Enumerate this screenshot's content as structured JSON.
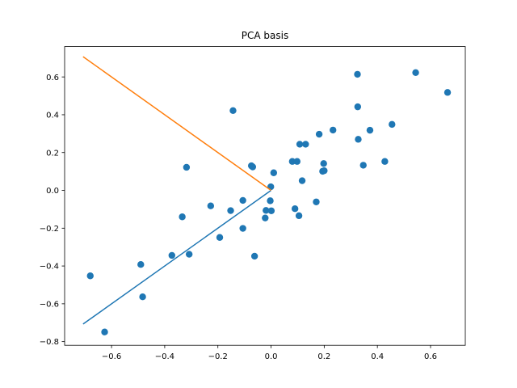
{
  "chart_data": {
    "type": "scatter",
    "title": "PCA basis",
    "xlabel": "",
    "ylabel": "",
    "xlim": [
      -0.7765,
      0.7307
    ],
    "ylim": [
      -0.8195,
      0.7606
    ],
    "xticks": [
      -0.6,
      -0.4,
      -0.2,
      0.0,
      0.2,
      0.4,
      0.6
    ],
    "xtick_labels": [
      "−0.6",
      "−0.4",
      "−0.2",
      "0.0",
      "0.2",
      "0.4",
      "0.6"
    ],
    "yticks": [
      -0.8,
      -0.6,
      -0.4,
      -0.2,
      0.0,
      0.2,
      0.4,
      0.6
    ],
    "ytick_labels": [
      "−0.8",
      "−0.6",
      "−0.4",
      "−0.2",
      "0.0",
      "0.2",
      "0.4",
      "0.6"
    ],
    "grid": false,
    "series": [
      {
        "kind": "scatter",
        "color": "#1f77b4",
        "points": [
          [
            -0.68,
            -0.452
          ],
          [
            -0.626,
            -0.749
          ],
          [
            -0.483,
            -0.563
          ],
          [
            -0.49,
            -0.392
          ],
          [
            -0.373,
            -0.344
          ],
          [
            -0.334,
            -0.14
          ],
          [
            -0.308,
            -0.338
          ],
          [
            -0.318,
            0.122
          ],
          [
            -0.227,
            -0.082
          ],
          [
            -0.193,
            -0.249
          ],
          [
            -0.152,
            -0.107
          ],
          [
            -0.143,
            0.422
          ],
          [
            -0.106,
            -0.201
          ],
          [
            -0.106,
            -0.053
          ],
          [
            -0.074,
            0.13
          ],
          [
            -0.069,
            0.124
          ],
          [
            -0.062,
            -0.348
          ],
          [
            -0.022,
            -0.146
          ],
          [
            -0.019,
            -0.106
          ],
          [
            -0.003,
            -0.055
          ],
          [
            -0.001,
            0.019
          ],
          [
            0.001,
            -0.108
          ],
          [
            0.01,
            0.093
          ],
          [
            0.08,
            0.153
          ],
          [
            0.09,
            -0.097
          ],
          [
            0.098,
            0.153
          ],
          [
            0.105,
            -0.134
          ],
          [
            0.108,
            0.244
          ],
          [
            0.117,
            0.051
          ],
          [
            0.13,
            0.244
          ],
          [
            0.17,
            -0.061
          ],
          [
            0.181,
            0.297
          ],
          [
            0.194,
            0.101
          ],
          [
            0.198,
            0.142
          ],
          [
            0.2,
            0.104
          ],
          [
            0.233,
            0.319
          ],
          [
            0.325,
            0.614
          ],
          [
            0.326,
            0.442
          ],
          [
            0.328,
            0.27
          ],
          [
            0.347,
            0.133
          ],
          [
            0.372,
            0.318
          ],
          [
            0.428,
            0.153
          ],
          [
            0.455,
            0.349
          ],
          [
            0.544,
            0.623
          ],
          [
            0.664,
            0.518
          ]
        ]
      },
      {
        "kind": "line",
        "color": "#1f77b4",
        "points": [
          [
            0.0,
            0.0
          ],
          [
            -0.7071,
            -0.7071
          ]
        ]
      },
      {
        "kind": "line",
        "color": "#ff7f0e",
        "points": [
          [
            0.0,
            0.0
          ],
          [
            -0.7071,
            0.7071
          ]
        ]
      }
    ]
  }
}
